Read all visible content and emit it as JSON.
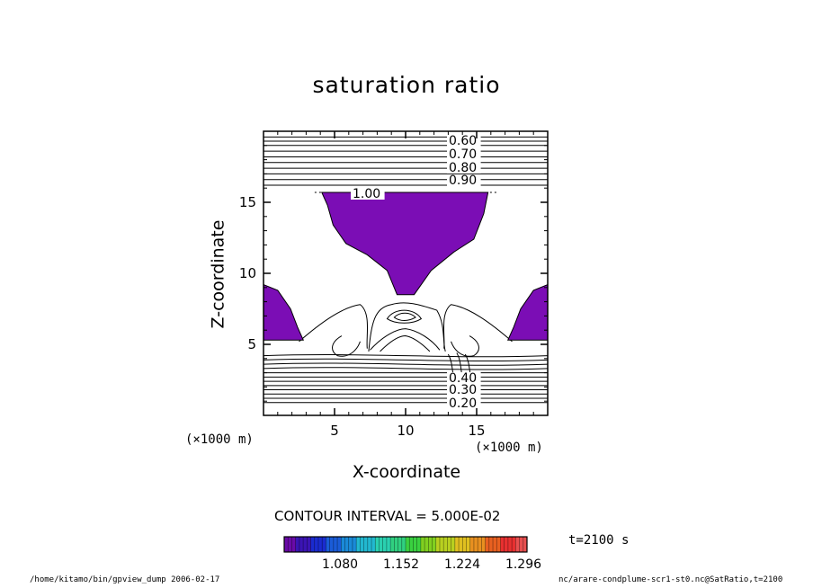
{
  "chart_data": {
    "type": "contour",
    "title": "saturation ratio",
    "xlabel": "X-coordinate",
    "ylabel": "Z-coordinate",
    "x_unit": "(×1000 m)",
    "y_unit": "(×1000 m)",
    "xlim": [
      0,
      20
    ],
    "ylim": [
      0,
      20
    ],
    "x_ticks": [
      5,
      10,
      15
    ],
    "y_ticks": [
      5,
      10,
      15
    ],
    "contour_interval_label": "CONTOUR INTERVAL = 5.000E-02",
    "contour_labels_upper": [
      "0.60",
      "0.70",
      "0.80",
      "0.90"
    ],
    "contour_labels_lower": [
      "0.20",
      "0.30",
      "0.40"
    ],
    "contour_label_level": "1.00",
    "shaded_regions": [
      {
        "name": "central-upper",
        "value": ">1.00",
        "polygon": [
          [
            4.1,
            15.7
          ],
          [
            15.8,
            15.7
          ],
          [
            15.5,
            14.2
          ],
          [
            14.8,
            12.4
          ],
          [
            13.4,
            11.5
          ],
          [
            11.8,
            10.2
          ],
          [
            10.6,
            8.5
          ],
          [
            9.4,
            8.5
          ],
          [
            8.7,
            10.2
          ],
          [
            7.3,
            11.3
          ],
          [
            5.8,
            12.1
          ],
          [
            4.9,
            13.4
          ],
          [
            4.5,
            14.8
          ]
        ]
      },
      {
        "name": "left-lobe",
        "value": ">1.00",
        "polygon": [
          [
            0,
            9.2
          ],
          [
            1.0,
            8.8
          ],
          [
            1.9,
            7.5
          ],
          [
            2.4,
            6.2
          ],
          [
            2.8,
            5.3
          ],
          [
            0,
            5.3
          ]
        ]
      },
      {
        "name": "right-lobe",
        "value": ">1.00",
        "polygon": [
          [
            20,
            9.2
          ],
          [
            19.0,
            8.8
          ],
          [
            18.1,
            7.5
          ],
          [
            17.6,
            6.2
          ],
          [
            17.2,
            5.3
          ],
          [
            20,
            5.3
          ]
        ]
      }
    ],
    "shade_color": "#7b0db5",
    "colorbar": {
      "tick_labels": [
        "1.080",
        "1.152",
        "1.224",
        "1.296"
      ],
      "colors": [
        "#6a0aa8",
        "#3b14b4",
        "#1a2bd0",
        "#1a5cd8",
        "#1a8ad8",
        "#22b8d0",
        "#2ad0b0",
        "#30d080",
        "#3ad040",
        "#80d020",
        "#b8d020",
        "#e0c020",
        "#e89020",
        "#e86020",
        "#e83030",
        "#e85050"
      ]
    },
    "time_label": "t=2100 s"
  },
  "footer": {
    "left": "/home/kitamo/bin/gpview_dump 2006-02-17",
    "right": "nc/arare-condplume-scr1-st0.nc@SatRatio,t=2100"
  }
}
